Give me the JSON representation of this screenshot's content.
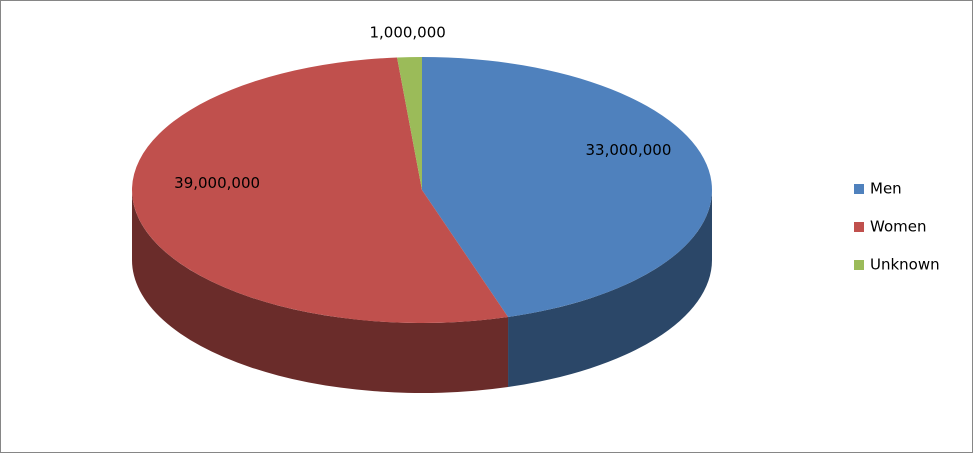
{
  "chart_data": {
    "type": "pie",
    "categories": [
      "Men",
      "Women",
      "Unknown"
    ],
    "values": [
      33000000,
      39000000,
      1000000
    ],
    "value_labels": [
      "33,000,000",
      "39,000,000",
      "1,000,000"
    ],
    "colors": [
      "#4f81bd",
      "#c0504d",
      "#9bbb59"
    ],
    "legend": "right"
  }
}
